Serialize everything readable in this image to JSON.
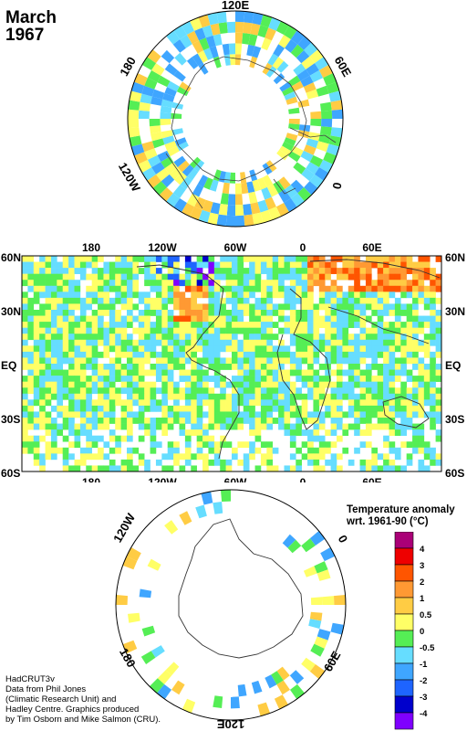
{
  "title": {
    "line1": "March",
    "line2": "1967"
  },
  "colors": {
    "background": "#ffffff",
    "land_outline": "#333333",
    "scale": [
      "#7f00ff",
      "#0000cc",
      "#1e64ff",
      "#3fa6ff",
      "#66ddff",
      "#55ee55",
      "#ffff66",
      "#ffcc44",
      "#ff9933",
      "#ff5500",
      "#ee0000",
      "#aa0077"
    ]
  },
  "north_polar": {
    "labels": {
      "top": "120E",
      "upper_left": "180",
      "upper_right": "60E",
      "lower_left": "120W",
      "right": "0"
    }
  },
  "world_map": {
    "top_labels": [
      "180",
      "120W",
      "60W",
      "0",
      "60E"
    ],
    "bottom_labels": [
      "180",
      "120W",
      "60W",
      "0",
      "60E"
    ],
    "left_labels": [
      "60N",
      "30N",
      "EQ",
      "30S",
      "60S"
    ],
    "right_labels": [
      "60N",
      "30N",
      "EQ",
      "30S",
      "60S"
    ]
  },
  "south_polar": {
    "labels": {
      "upper_left": "120W",
      "upper_right": "0",
      "lower_left": "180",
      "lower_right": "60E",
      "bottom": "120E"
    }
  },
  "legend": {
    "title_line1": "Temperature anomaly",
    "title_line2": "wrt. 1961-90  (°C)",
    "ticks": [
      "4",
      "3",
      "2",
      "1",
      "0.5",
      "0",
      "-0.5",
      "-1",
      "-2",
      "-3",
      "-4"
    ]
  },
  "credits": [
    "HadCRUT3v",
    "Data from Phil Jones",
    "(Climatic Research Unit) and",
    "Hadley Centre.  Graphics produced",
    "by Tim Osborn and Mike Salmon (CRU)."
  ]
}
